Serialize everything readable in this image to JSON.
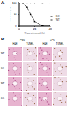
{
  "chart_data": {
    "type": "line",
    "x_label": "Time elapsed (h)",
    "y_label": "Survival (%)",
    "xlim": [
      0,
      48
    ],
    "xticks": [
      0,
      24,
      48
    ],
    "ylim": [
      0,
      100
    ],
    "yticks": [
      0,
      50,
      100
    ],
    "legend": "right",
    "x": [
      0,
      6,
      12,
      18,
      24,
      36,
      48
    ],
    "series": [
      {
        "name": "WT",
        "color": "#333333",
        "marker": "circle",
        "line_style": "dashed",
        "values": [
          100,
          100,
          100,
          100,
          100,
          100,
          100
        ]
      },
      {
        "name": "KO",
        "color": "#000000",
        "marker": "square",
        "line_style": "solid",
        "values": [
          100,
          100,
          80,
          50,
          20,
          0,
          0
        ]
      }
    ]
  },
  "panel_labels": [
    "A",
    "B"
  ],
  "histology": {
    "column_groups": [
      "PBS",
      "LPS"
    ],
    "columns": [
      "H&E",
      "TUNEL",
      "H&E",
      "TUNEL"
    ],
    "rows": [
      "WT",
      "KO",
      "WT",
      "KO"
    ]
  }
}
